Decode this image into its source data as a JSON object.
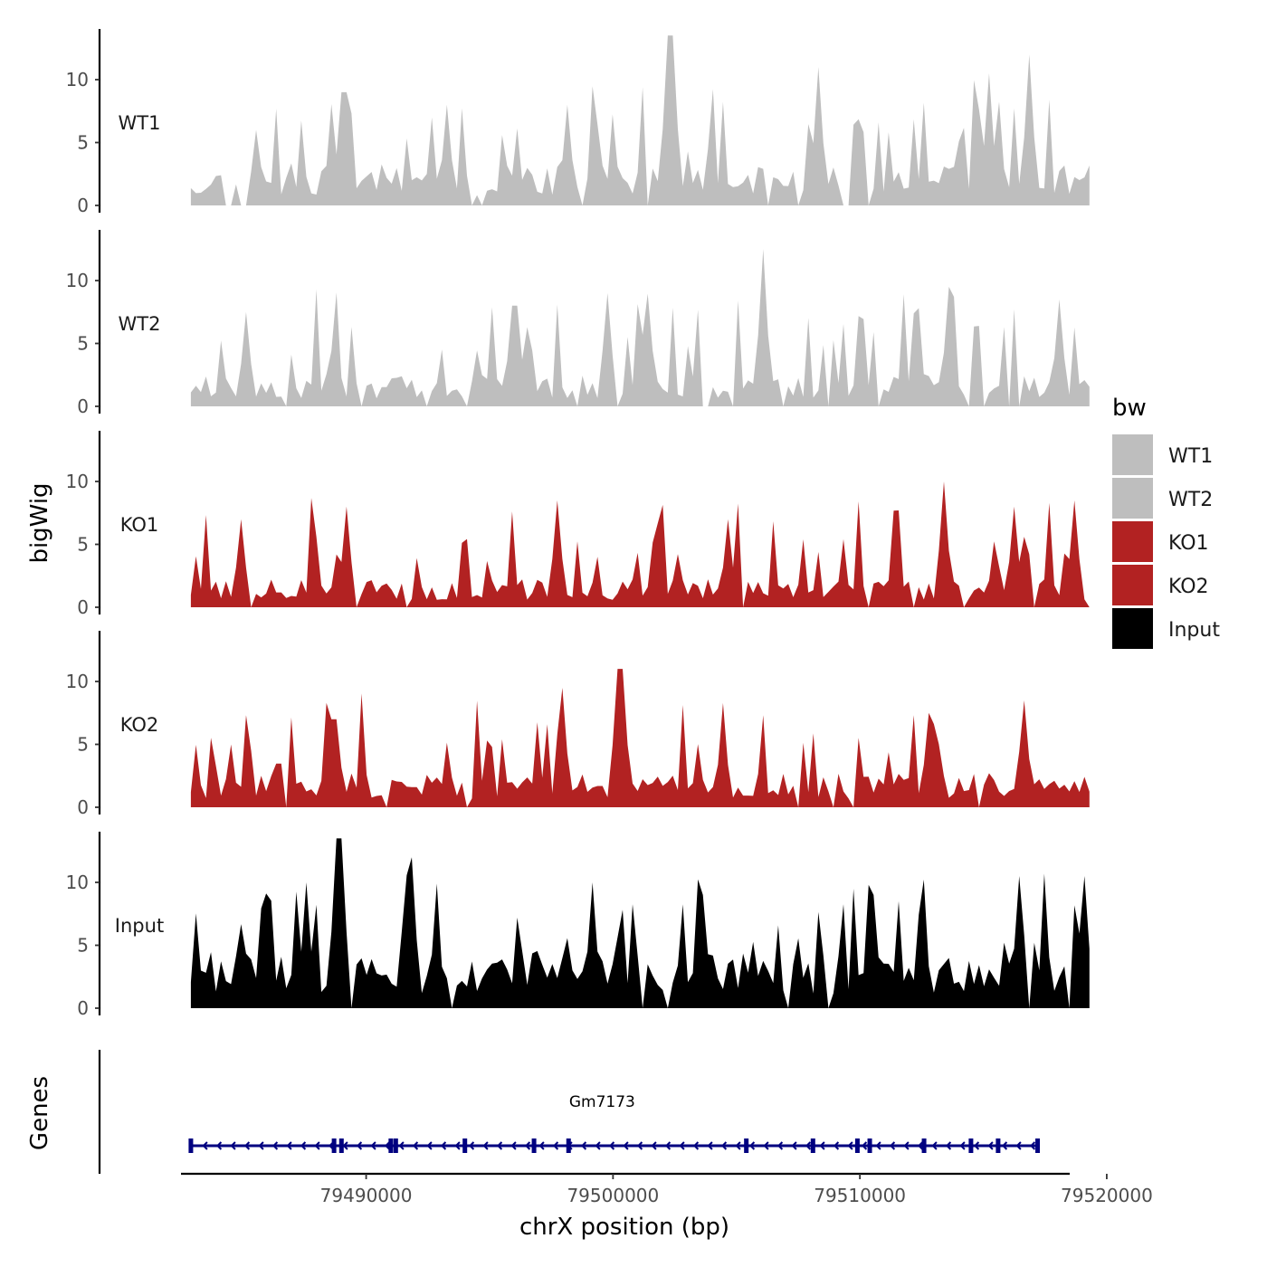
{
  "chart_data": {
    "type": "area",
    "xlabel": "chrX position (bp)",
    "ylabel": "bigWig",
    "genes_ylabel": "Genes",
    "xlim": [
      79482500,
      79518500
    ],
    "x_ticks": [
      79490000,
      79500000,
      79510000,
      79520000
    ],
    "x_tick_labels": [
      "79490000",
      "79500000",
      "79510000",
      "79520000"
    ],
    "ylim": [
      0,
      14
    ],
    "y_ticks": [
      0,
      5,
      10
    ],
    "y_tick_labels": [
      "0",
      "5",
      "10"
    ],
    "x_start": 79482900,
    "x_end": 79519300,
    "n_bins": 180,
    "legend_title": "bw",
    "legend_position": "right",
    "tracks": [
      {
        "name": "WT1",
        "color": "#BEBEBE",
        "seed": 11,
        "base": 2.0,
        "peaks": [
          [
            79485600,
            6.0
          ],
          [
            79489100,
            9.0
          ],
          [
            79493300,
            8.0
          ],
          [
            79498100,
            8.0
          ],
          [
            79502300,
            13.5
          ],
          [
            79508400,
            11.0
          ],
          [
            79515300,
            10.5
          ],
          [
            79516900,
            12.0
          ]
        ]
      },
      {
        "name": "WT2",
        "color": "#BEBEBE",
        "seed": 23,
        "base": 1.6,
        "peaks": [
          [
            79485100,
            7.5
          ],
          [
            79496000,
            8.0
          ],
          [
            79499800,
            9.0
          ],
          [
            79506100,
            12.5
          ],
          [
            79513600,
            9.5
          ],
          [
            79518100,
            8.5
          ]
        ]
      },
      {
        "name": "KO1",
        "color": "#B22222",
        "seed": 37,
        "base": 1.4,
        "peaks": [
          [
            79485000,
            7.0
          ],
          [
            79489200,
            8.0
          ],
          [
            79497700,
            8.5
          ],
          [
            79504700,
            7.0
          ],
          [
            79513400,
            10.0
          ],
          [
            79516300,
            8.0
          ],
          [
            79518700,
            8.5
          ]
        ]
      },
      {
        "name": "KO2",
        "color": "#B22222",
        "seed": 49,
        "base": 1.7,
        "peaks": [
          [
            79488700,
            7.0
          ],
          [
            79497900,
            9.5
          ],
          [
            79500300,
            11.0
          ],
          [
            79504400,
            7.5
          ],
          [
            79512800,
            7.5
          ],
          [
            79516600,
            8.5
          ]
        ]
      },
      {
        "name": "Input",
        "color": "#000000",
        "seed": 61,
        "base": 2.9,
        "peaks": [
          [
            79487500,
            10.0
          ],
          [
            79488900,
            13.5
          ],
          [
            79491900,
            12.0
          ],
          [
            79499200,
            10.0
          ],
          [
            79503600,
            9.0
          ],
          [
            79510600,
            9.0
          ],
          [
            79516500,
            10.5
          ],
          [
            79519100,
            10.5
          ]
        ]
      }
    ],
    "genes": [
      {
        "name": "Gm7173",
        "start": 79482900,
        "end": 79517200,
        "strand": "-",
        "color": "#000080",
        "exons": [
          79482900,
          79488700,
          79489000,
          79491000,
          79491200,
          79494000,
          79496800,
          79498200,
          79505400,
          79508100,
          79509900,
          79510400,
          79512600,
          79514500,
          79515600,
          79517200
        ]
      }
    ]
  }
}
